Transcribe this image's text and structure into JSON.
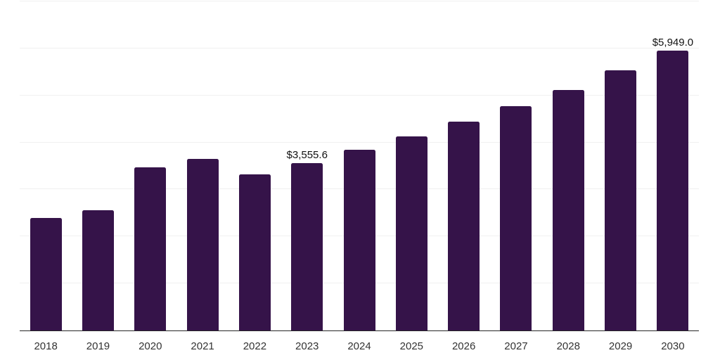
{
  "chart_data": {
    "type": "bar",
    "title": "",
    "xlabel": "",
    "ylabel": "",
    "categories": [
      "2018",
      "2019",
      "2020",
      "2021",
      "2022",
      "2023",
      "2024",
      "2025",
      "2026",
      "2027",
      "2028",
      "2029",
      "2030"
    ],
    "values": [
      2390,
      2555,
      3470,
      3650,
      3325,
      3555.6,
      3840,
      4125,
      4440,
      4770,
      5120,
      5535,
      5949
    ],
    "data_labels": {
      "2023": "$3,555.6",
      "2030": "$5,949.0"
    },
    "ylim": [
      0,
      7000
    ],
    "gridline_step": 1000,
    "grid": "horizontal",
    "legend": "none",
    "colors": {
      "bar": "#351349",
      "axis": "#262626",
      "gridline": "#f0f0f0",
      "data_label_text": "#111111",
      "tick_text": "#333333",
      "background": "#ffffff"
    }
  }
}
